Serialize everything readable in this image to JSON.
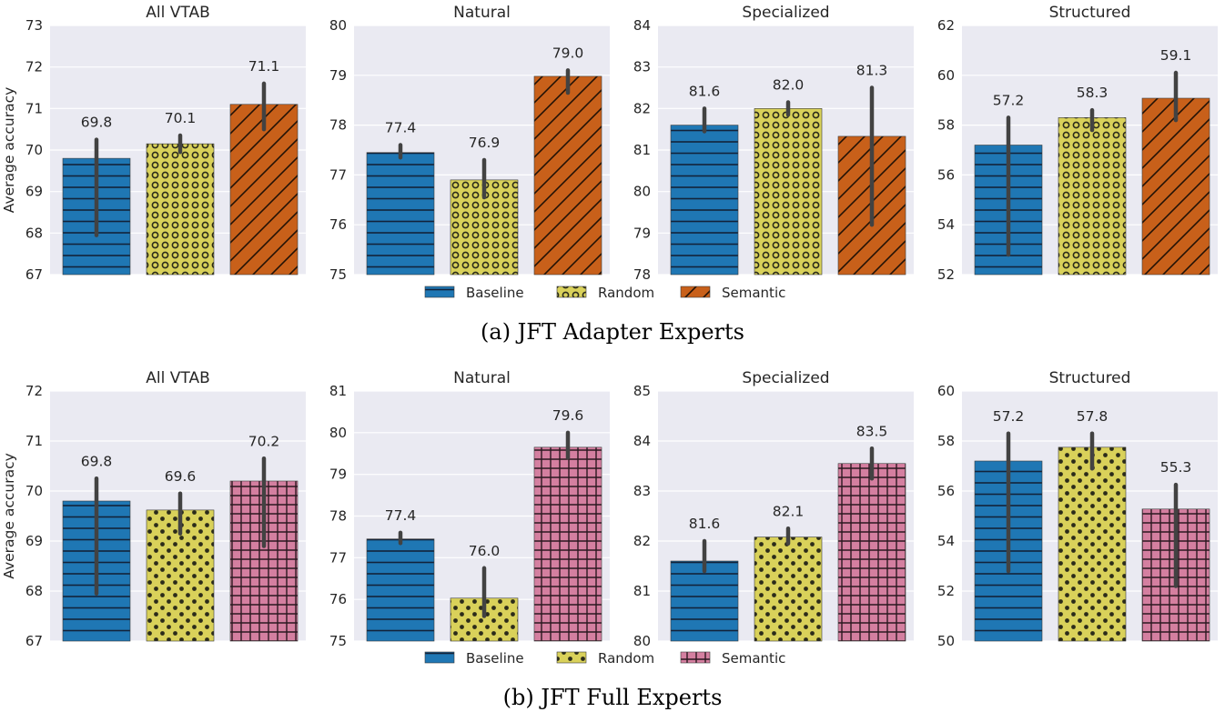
{
  "chart_data": [
    {
      "type": "bar",
      "caption": "(a) JFT Adapter Experts",
      "ylabel": "Average accuracy",
      "legend": [
        "Baseline",
        "Random",
        "Semantic"
      ],
      "series_names": [
        "Baseline",
        "Random",
        "Semantic"
      ],
      "panels": [
        {
          "title": "All VTAB",
          "ylim": [
            67,
            73
          ],
          "yticks": [
            "67",
            "68",
            "69",
            "70",
            "71",
            "72",
            "73"
          ],
          "values": [
            69.8,
            70.15,
            71.1
          ],
          "labels": [
            "69.8",
            "70.1",
            "71.1"
          ],
          "err": [
            [
              67.95,
              70.25
            ],
            [
              69.95,
              70.35
            ],
            [
              70.5,
              71.6
            ]
          ]
        },
        {
          "title": "Natural",
          "ylim": [
            75,
            80
          ],
          "yticks": [
            "75",
            "76",
            "77",
            "78",
            "79",
            "80"
          ],
          "values": [
            77.45,
            76.9,
            78.98
          ],
          "labels": [
            "77.4",
            "76.9",
            "79.0"
          ],
          "err": [
            [
              77.35,
              77.6
            ],
            [
              76.55,
              77.3
            ],
            [
              78.65,
              79.1
            ]
          ]
        },
        {
          "title": "Specialized",
          "ylim": [
            78,
            84
          ],
          "yticks": [
            "78",
            "79",
            "80",
            "81",
            "82",
            "83",
            "84"
          ],
          "values": [
            81.6,
            82.0,
            81.33
          ],
          "labels": [
            "81.6",
            "82.0",
            "81.3"
          ],
          "err": [
            [
              81.45,
              82.0
            ],
            [
              81.85,
              82.15
            ],
            [
              79.2,
              82.5
            ]
          ]
        },
        {
          "title": "Structured",
          "ylim": [
            52,
            62
          ],
          "yticks": [
            "52",
            "54",
            "56",
            "58",
            "60",
            "62"
          ],
          "values": [
            57.2,
            58.3,
            59.08
          ],
          "labels": [
            "57.2",
            "58.3",
            "59.1"
          ],
          "err": [
            [
              52.8,
              58.3
            ],
            [
              57.8,
              58.6
            ],
            [
              58.2,
              60.1
            ]
          ]
        }
      ]
    },
    {
      "type": "bar",
      "caption": "(b) JFT Full Experts",
      "ylabel": "Average accuracy",
      "legend": [
        "Baseline",
        "Random",
        "Semantic"
      ],
      "series_names": [
        "Baseline",
        "Random",
        "Semantic"
      ],
      "panels": [
        {
          "title": "All VTAB",
          "ylim": [
            67,
            72
          ],
          "yticks": [
            "67",
            "68",
            "69",
            "70",
            "71",
            "72"
          ],
          "values": [
            69.8,
            69.62,
            70.2
          ],
          "labels": [
            "69.8",
            "69.6",
            "70.2"
          ],
          "err": [
            [
              67.95,
              70.25
            ],
            [
              69.15,
              69.95
            ],
            [
              68.9,
              70.65
            ]
          ]
        },
        {
          "title": "Natural",
          "ylim": [
            75,
            81
          ],
          "yticks": [
            "75",
            "76",
            "77",
            "78",
            "79",
            "80",
            "81"
          ],
          "values": [
            77.45,
            76.03,
            79.65
          ],
          "labels": [
            "77.4",
            "76.0",
            "79.6"
          ],
          "err": [
            [
              77.35,
              77.6
            ],
            [
              75.6,
              76.75
            ],
            [
              79.4,
              80.0
            ]
          ]
        },
        {
          "title": "Specialized",
          "ylim": [
            80,
            85
          ],
          "yticks": [
            "80",
            "81",
            "82",
            "83",
            "84",
            "85"
          ],
          "values": [
            81.6,
            82.08,
            83.55
          ],
          "labels": [
            "81.6",
            "82.1",
            "83.5"
          ],
          "err": [
            [
              81.4,
              82.0
            ],
            [
              81.95,
              82.25
            ],
            [
              83.25,
              83.85
            ]
          ]
        },
        {
          "title": "Structured",
          "ylim": [
            50,
            60
          ],
          "yticks": [
            "50",
            "52",
            "54",
            "56",
            "58",
            "60"
          ],
          "values": [
            57.2,
            57.75,
            55.28
          ],
          "labels": [
            "57.2",
            "57.8",
            "55.3"
          ],
          "err": [
            [
              52.8,
              58.3
            ],
            [
              56.9,
              58.3
            ],
            [
              52.2,
              56.25
            ]
          ]
        }
      ]
    }
  ],
  "colors": {
    "baseline": "#1f77b4",
    "random": "#d9d15a",
    "semantic_a": "#c8601a",
    "semantic_b": "#d47fa0",
    "panel_bg": "#eaeaf2",
    "error_bar": "#424242"
  }
}
